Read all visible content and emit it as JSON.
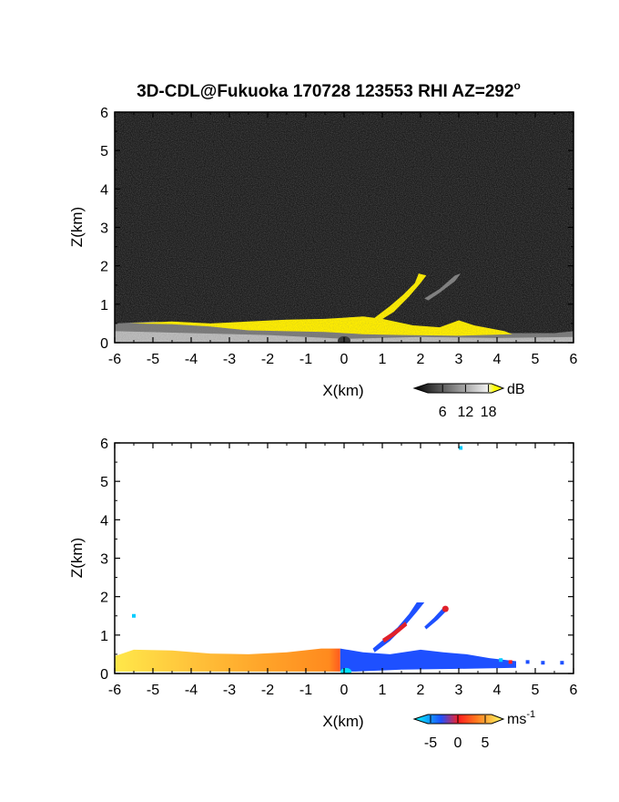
{
  "title": "3D-CDL@Fukuoka 170728 123553 RHI AZ=292",
  "title_superscript": "o",
  "panels": [
    {
      "id": "snr",
      "type": "heatmap",
      "xlabel": "X(km)",
      "ylabel": "Z(km)",
      "xlim": [
        -6,
        6
      ],
      "ylim": [
        0,
        6
      ],
      "xticks": [
        "-6",
        "-5",
        "-4",
        "-3",
        "-2",
        "-1",
        "0",
        "1",
        "2",
        "3",
        "4",
        "5",
        "6"
      ],
      "yticks": [
        "0",
        "1",
        "2",
        "3",
        "4",
        "5",
        "6"
      ],
      "background_color": "#1a1a1a",
      "colorbar": {
        "unit": "dB",
        "unit_superscript": "",
        "ticks": [
          "6",
          "12",
          "18"
        ],
        "tick_values": [
          6,
          12,
          18
        ],
        "range": [
          0,
          20
        ],
        "colors": [
          "#000000",
          "#ffffff",
          "#ffff00"
        ]
      }
    },
    {
      "id": "velocity",
      "type": "heatmap",
      "xlabel": "X(km)",
      "ylabel": "Z(km)",
      "xlim": [
        -6,
        6
      ],
      "ylim": [
        0,
        6
      ],
      "xticks": [
        "-6",
        "-5",
        "-4",
        "-3",
        "-2",
        "-1",
        "0",
        "1",
        "2",
        "3",
        "4",
        "5",
        "6"
      ],
      "yticks": [
        "0",
        "1",
        "2",
        "3",
        "4",
        "5",
        "6"
      ],
      "background_color": "#ffffff",
      "colorbar": {
        "unit": "ms",
        "unit_superscript": "-1",
        "ticks": [
          "-5",
          "0",
          "5"
        ],
        "tick_values": [
          -5,
          0,
          5
        ],
        "range": [
          -7,
          7
        ],
        "colors": [
          "#00ffff",
          "#1e50ff",
          "#ff1e1e",
          "#ffff66"
        ]
      }
    }
  ],
  "chart_data": [
    {
      "type": "heatmap",
      "title": "3D-CDL@Fukuoka 170728 123553 RHI AZ=292°",
      "xlabel": "X(km)",
      "ylabel": "Z(km)",
      "xlim": [
        -6,
        6
      ],
      "ylim": [
        0,
        6
      ],
      "unit": "dB",
      "colors": {
        "strong_echo": "#ffee00",
        "weak_echo": "#9a9a9a",
        "noise": "#1a1a1a"
      },
      "features": [
        {
          "kind": "boundary_layer",
          "x_range": [
            -6,
            4.4
          ],
          "z_top_km": 0.55,
          "value_db": 18
        },
        {
          "kind": "plume",
          "from": [
            0.8,
            0.6
          ],
          "to": [
            2.1,
            1.75
          ],
          "value_db": 18
        },
        {
          "kind": "thin_layer",
          "from": [
            2.2,
            1.2
          ],
          "to": [
            3.0,
            1.8
          ],
          "value_db": 10
        }
      ]
    },
    {
      "type": "heatmap",
      "xlabel": "X(km)",
      "ylabel": "Z(km)",
      "xlim": [
        -6,
        6
      ],
      "ylim": [
        0,
        6
      ],
      "unit": "ms-1",
      "features": [
        {
          "kind": "boundary_layer",
          "x_range": [
            -6,
            -0.1
          ],
          "z_top_km": 0.65,
          "velocity_ms": 4.5
        },
        {
          "kind": "boundary_layer",
          "x_range": [
            -0.1,
            4.5
          ],
          "z_top_km": 0.5,
          "velocity_ms": -3.5
        },
        {
          "kind": "plume",
          "from": [
            0.8,
            0.6
          ],
          "to": [
            2.1,
            1.8
          ],
          "velocity_ms": -3.5
        },
        {
          "kind": "plume_core",
          "from": [
            1.0,
            0.8
          ],
          "to": [
            1.7,
            1.3
          ],
          "velocity_ms": 0
        },
        {
          "kind": "thin_layer",
          "from": [
            2.2,
            1.2
          ],
          "to": [
            2.7,
            1.7
          ],
          "velocity_ms": -3
        }
      ]
    }
  ]
}
